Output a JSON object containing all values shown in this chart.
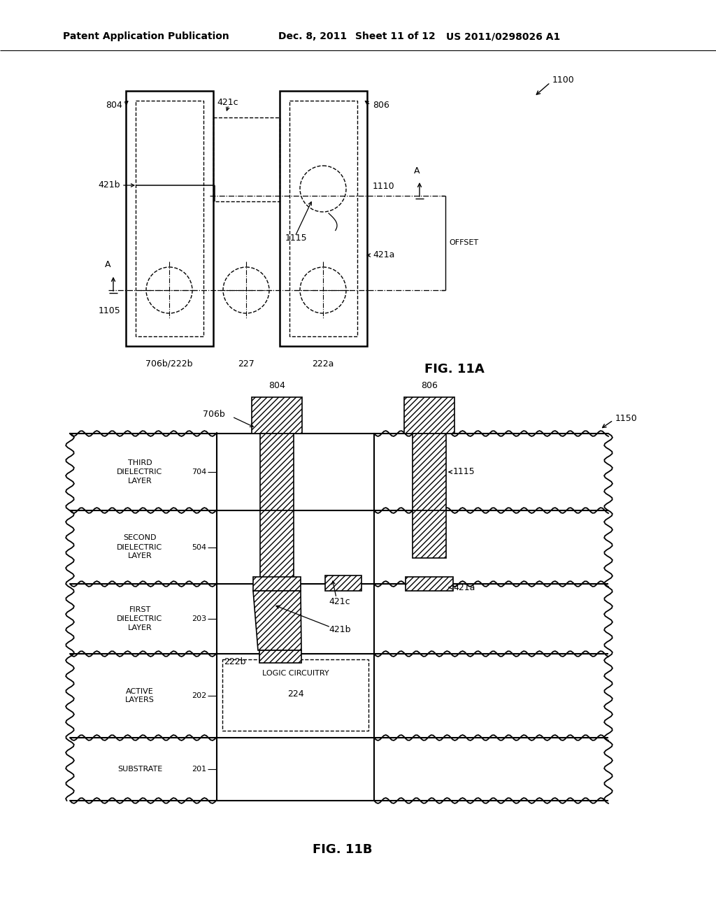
{
  "bg_color": "#ffffff",
  "header_line1": "Patent Application Publication",
  "header_line2": "Dec. 8, 2011",
  "header_line3": "Sheet 11 of 12",
  "header_line4": "US 2011/0298026 A1",
  "fig11a_label": "FIG. 11A",
  "fig11b_label": "FIG. 11B"
}
